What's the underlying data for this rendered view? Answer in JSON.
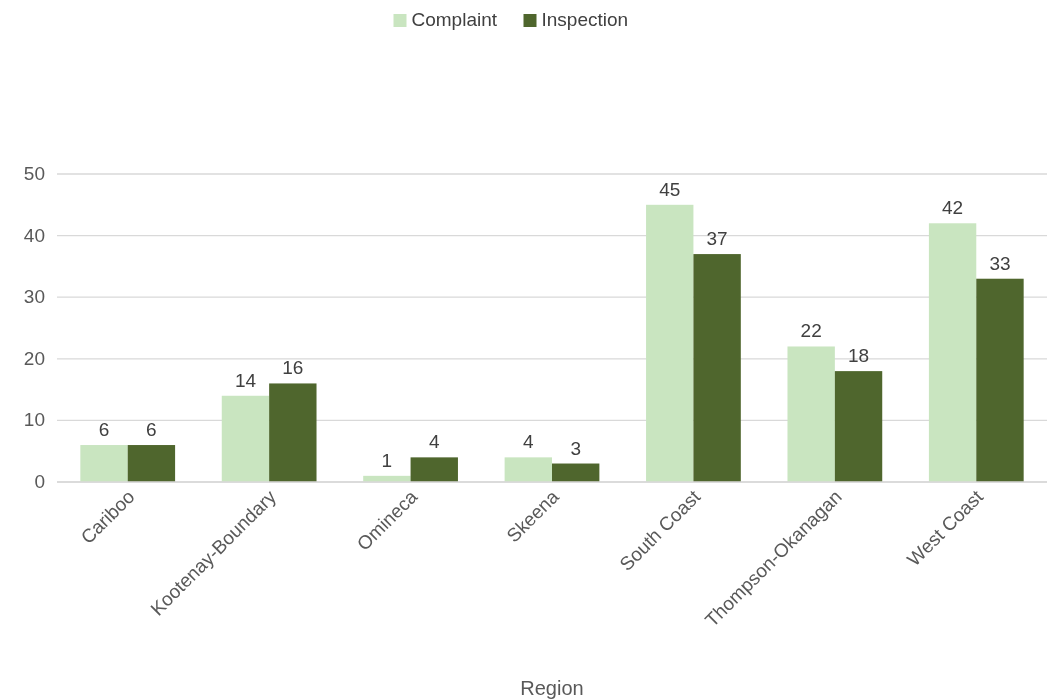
{
  "chart_data": {
    "type": "bar",
    "xlabel": "Region",
    "categories": [
      "Cariboo",
      "Kootenay-Boundary",
      "Omineca",
      "Skeena",
      "South Coast",
      "Thompson-Okanagan",
      "West Coast"
    ],
    "series": [
      {
        "name": "Complaint",
        "color": "#c9e5c0",
        "values": [
          6,
          14,
          1,
          4,
          45,
          22,
          42
        ]
      },
      {
        "name": "Inspection",
        "color": "#4f662d",
        "values": [
          6,
          16,
          4,
          3,
          37,
          18,
          33
        ]
      }
    ],
    "ylim": [
      0,
      50
    ],
    "yticks": [
      0,
      10,
      20,
      30,
      40,
      50
    ],
    "grid": "y",
    "legend": "top",
    "data_labels": true
  }
}
